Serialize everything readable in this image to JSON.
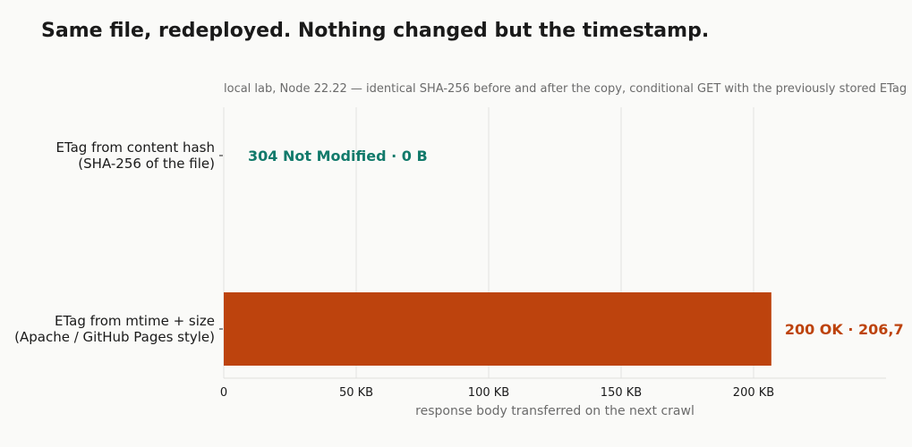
{
  "chart_data": {
    "type": "bar",
    "orientation": "horizontal",
    "title": "Same file, redeployed. Nothing changed but the timestamp.",
    "subtitle": "local lab, Node 22.22 — identical SHA-256 before and after the copy, conditional GET with the previously stored ETag",
    "xlabel": "response body transferred on the next crawl",
    "categories": [
      [
        "ETag from content hash",
        "(SHA-256 of the file)"
      ],
      [
        "ETag from mtime + size",
        "(Apache / GitHub Pages style)"
      ]
    ],
    "values": [
      0,
      206.7
    ],
    "value_unit": "KB",
    "data_labels": [
      "304 Not Modified · 0 B",
      "200 OK · 206,7"
    ],
    "colors": [
      "#127a6b",
      "#bd430d"
    ],
    "xlim": [
      0,
      250
    ],
    "xticks": [
      0,
      50,
      100,
      150,
      200
    ],
    "xtick_labels": [
      "0",
      "50 KB",
      "100 KB",
      "150 KB",
      "200 KB"
    ],
    "grid": "vertical"
  }
}
